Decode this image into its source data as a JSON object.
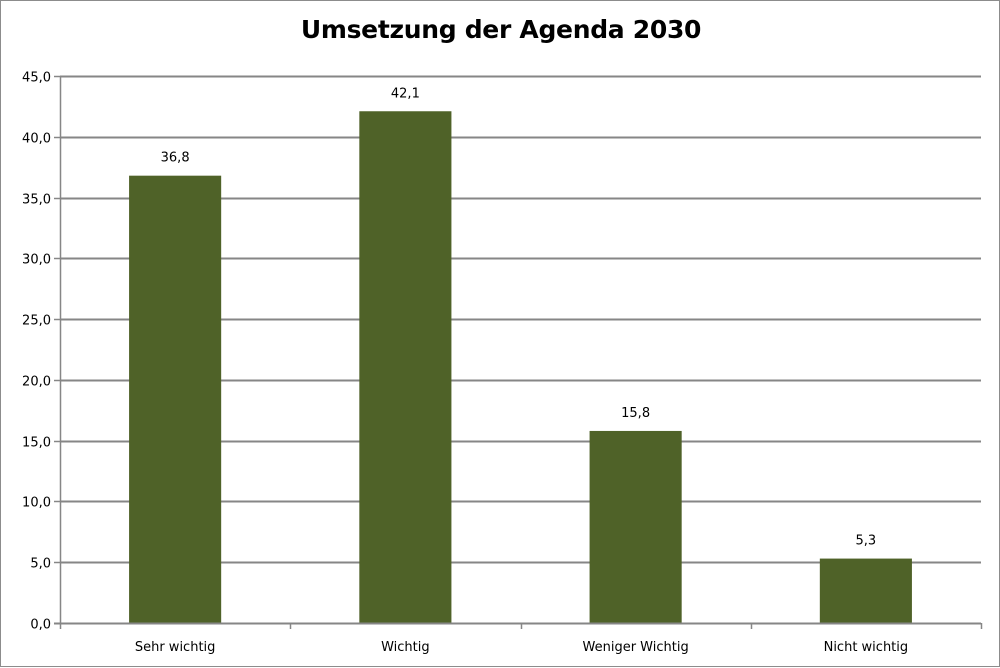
{
  "chart_data": {
    "type": "bar",
    "title": "Umsetzung der Agenda 2030",
    "xlabel": "",
    "ylabel": "",
    "categories": [
      "Sehr wichtig",
      "Wichtig",
      "Weniger Wichtig",
      "Nicht wichtig"
    ],
    "values": [
      36.8,
      42.1,
      15.8,
      5.3
    ],
    "data_labels": [
      "36,8",
      "42,1",
      "15,8",
      "5,3"
    ],
    "ylim": [
      0,
      45
    ],
    "ytick_step": 5,
    "ytick_labels": [
      "0,0",
      "5,0",
      "10,0",
      "15,0",
      "20,0",
      "25,0",
      "30,0",
      "35,0",
      "40,0",
      "45,0"
    ],
    "grid": true,
    "legend": "none",
    "bar_color": "#4f6228",
    "grid_color": "#868686"
  }
}
